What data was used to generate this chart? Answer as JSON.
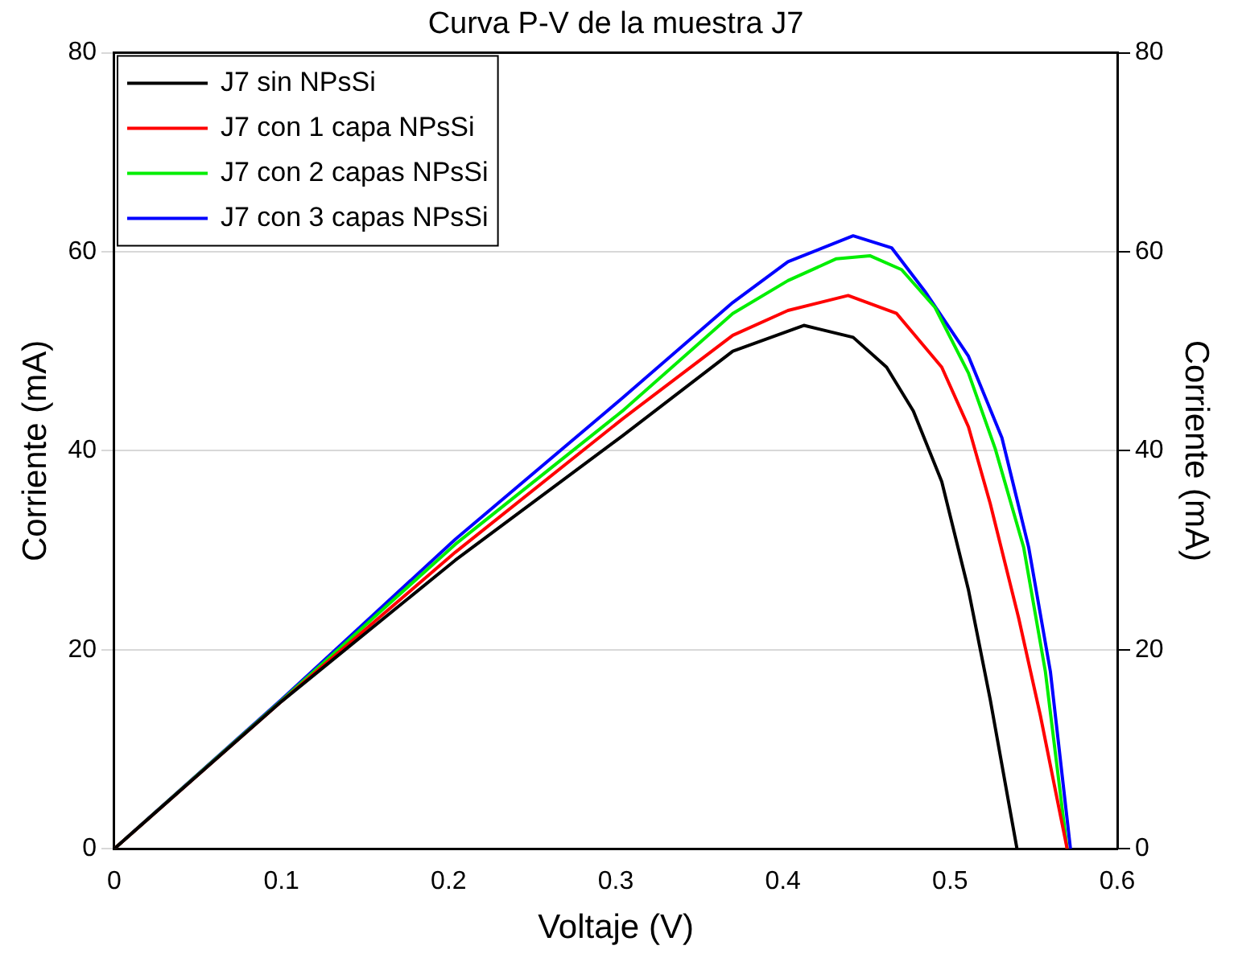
{
  "chart_data": {
    "type": "line",
    "title": "Curva P-V de la muestra J7",
    "xlabel": "Voltaje (V)",
    "ylabel": "Corriente (mA)",
    "y2label": "Corriente (mA)",
    "xlim": [
      0,
      0.6
    ],
    "xticks": [
      0,
      0.1,
      0.2,
      0.3,
      0.4,
      0.5,
      0.6
    ],
    "ylim": [
      0,
      80
    ],
    "yticks": [
      0,
      20,
      40,
      60,
      80
    ],
    "y2lim": [
      0,
      80
    ],
    "y2ticks": [
      0,
      20,
      40,
      60,
      80
    ],
    "grid": "y",
    "legend": "top left",
    "marker": "none",
    "line_style": "solid",
    "series": [
      {
        "name": "J7 sin NPsSi",
        "color": "#000000",
        "x": [
          0,
          0.1,
          0.204,
          0.304,
          0.37,
          0.4125,
          0.442,
          0.462,
          0.478,
          0.495,
          0.511,
          0.524,
          0.54
        ],
        "values": [
          0,
          14.8,
          29.0,
          41.5,
          50.0,
          52.6,
          51.4,
          48.4,
          44.0,
          36.9,
          26.0,
          15.0,
          0
        ]
      },
      {
        "name": "J7 con 1 capa NPsSi",
        "color": "#ff0000",
        "x": [
          0,
          0.1,
          0.204,
          0.304,
          0.37,
          0.403,
          0.439,
          0.468,
          0.495,
          0.511,
          0.524,
          0.541,
          0.554,
          0.57
        ],
        "values": [
          0,
          14.8,
          29.8,
          43.2,
          51.6,
          54.1,
          55.6,
          53.8,
          48.4,
          42.4,
          34.7,
          23.2,
          13.4,
          0
        ]
      },
      {
        "name": "J7 con 2 capas NPsSi",
        "color": "#00ee00",
        "x": [
          0,
          0.1,
          0.204,
          0.304,
          0.37,
          0.403,
          0.432,
          0.452,
          0.471,
          0.491,
          0.511,
          0.527,
          0.544,
          0.557,
          0.57
        ],
        "values": [
          0,
          14.9,
          30.6,
          44.0,
          53.8,
          57.1,
          59.3,
          59.6,
          58.2,
          54.4,
          47.8,
          40.2,
          30.3,
          17.8,
          0
        ]
      },
      {
        "name": "J7 con 3 capas NPsSi",
        "color": "#0000ff",
        "x": [
          0,
          0.1,
          0.204,
          0.304,
          0.37,
          0.403,
          0.442,
          0.465,
          0.485,
          0.511,
          0.531,
          0.547,
          0.56,
          0.572
        ],
        "values": [
          0,
          15.0,
          31.1,
          45.3,
          54.9,
          59.0,
          61.6,
          60.4,
          56.0,
          49.5,
          41.3,
          30.3,
          17.8,
          0
        ]
      }
    ]
  }
}
